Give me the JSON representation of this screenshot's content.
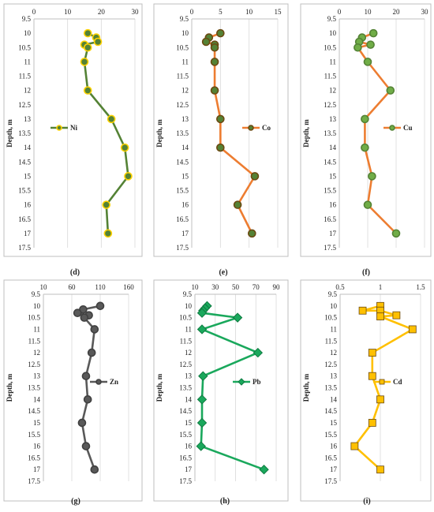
{
  "chart_data": [
    {
      "panel": "(d)",
      "type": "line",
      "ylabel": "Depth, m",
      "xlim": [
        0,
        30
      ],
      "xticks": [
        0,
        10,
        20,
        30
      ],
      "ylim": [
        9.5,
        17.5
      ],
      "yticks": [
        "9.5",
        "10",
        "10.5",
        "11",
        "11.5",
        "12",
        "12.5",
        "13",
        "13.5",
        "14",
        "14.5",
        "15",
        "15.5",
        "16",
        "16.5",
        "17",
        "17.5"
      ],
      "series": [
        {
          "name": "Ni",
          "marker": "circle",
          "color": "#548235",
          "marker_fill": "#548235",
          "marker_edge": "#ffd200",
          "x": [
            16,
            18.5,
            19,
            15,
            16,
            15,
            16,
            23,
            27,
            28,
            21.5,
            22
          ],
          "y": [
            10,
            10.15,
            10.3,
            10.4,
            10.5,
            11,
            12,
            13,
            14,
            15,
            16,
            17
          ]
        }
      ]
    },
    {
      "panel": "(e)",
      "type": "line",
      "ylabel": "Depth, m",
      "xlim": [
        0,
        15
      ],
      "xticks": [
        0,
        5,
        10,
        15
      ],
      "ylim": [
        9.5,
        17.5
      ],
      "yticks": [
        "9.5",
        "10",
        "10.5",
        "11",
        "11.5",
        "12",
        "12.5",
        "13",
        "13.5",
        "14",
        "14.5",
        "15",
        "15.5",
        "16",
        "16.5",
        "17",
        "17.5"
      ],
      "series": [
        {
          "name": "Co",
          "marker": "circle",
          "color": "#ed7d31",
          "marker_fill": "#548235",
          "marker_edge": "#6b4a12",
          "x": [
            5,
            3,
            2.5,
            4,
            4,
            4,
            4,
            5,
            5,
            11,
            8,
            10.5
          ],
          "y": [
            10,
            10.15,
            10.3,
            10.4,
            10.5,
            11,
            12,
            13,
            14,
            15,
            16,
            17
          ]
        }
      ]
    },
    {
      "panel": "(f)",
      "type": "line",
      "ylabel": "Depth, m",
      "xlim": [
        0,
        30
      ],
      "xticks": [
        0,
        10,
        20,
        30
      ],
      "ylim": [
        9.5,
        17.5
      ],
      "yticks": [
        "9.5",
        "10",
        "10.5",
        "11",
        "11.5",
        "12",
        "12.5",
        "13",
        "13.5",
        "14",
        "14.5",
        "15",
        "15.5",
        "16",
        "16.5",
        "17",
        "17.5"
      ],
      "series": [
        {
          "name": "Cu",
          "marker": "circle",
          "color": "#ed7d31",
          "marker_fill": "#70ad47",
          "marker_edge": "#548235",
          "x": [
            12,
            8,
            7,
            11,
            6.5,
            10,
            18,
            9,
            9,
            11.5,
            10,
            20
          ],
          "y": [
            10,
            10.15,
            10.3,
            10.4,
            10.5,
            11,
            12,
            13,
            14,
            15,
            16,
            17
          ]
        }
      ]
    },
    {
      "panel": "(g)",
      "type": "line",
      "ylabel": "Depth, m",
      "xlim": [
        10,
        160
      ],
      "xticks": [
        10,
        60,
        110,
        160
      ],
      "ylim": [
        9.5,
        17.5
      ],
      "yticks": [
        "9.5",
        "10",
        "10.5",
        "11",
        "11.5",
        "12",
        "12.5",
        "13",
        "13.5",
        "14",
        "14.5",
        "15",
        "15.5",
        "16",
        "16.5",
        "17",
        "17.5"
      ],
      "series": [
        {
          "name": "Zn",
          "marker": "circle",
          "color": "#595959",
          "marker_fill": "#595959",
          "marker_edge": "#404040",
          "x": [
            110,
            80,
            70,
            90,
            82,
            100,
            95,
            85,
            88,
            78,
            85,
            100
          ],
          "y": [
            10,
            10.15,
            10.3,
            10.4,
            10.5,
            11,
            12,
            13,
            14,
            15,
            16,
            17
          ]
        }
      ]
    },
    {
      "panel": "(h)",
      "type": "line",
      "ylabel": "Depth, m",
      "xlim": [
        10,
        90
      ],
      "xticks": [
        10,
        30,
        50,
        70,
        90
      ],
      "ylim": [
        9.5,
        17.5
      ],
      "yticks": [
        "9.5",
        "10",
        "10.5",
        "11",
        "11.5",
        "12",
        "12.5",
        "13",
        "13.5",
        "14",
        "14.5",
        "15",
        "15.5",
        "16",
        "16.5",
        "17",
        "17.5"
      ],
      "series": [
        {
          "name": "Pb",
          "marker": "diamond",
          "color": "#1aa85c",
          "marker_fill": "#1aa85c",
          "marker_edge": "#0e7a40",
          "x": [
            22,
            20,
            18,
            17,
            52,
            17,
            72,
            18,
            17,
            17,
            16,
            78
          ],
          "y": [
            10,
            10.1,
            10.2,
            10.3,
            10.5,
            11,
            12,
            13,
            14,
            15,
            16,
            17
          ]
        }
      ]
    },
    {
      "panel": "(i)",
      "type": "line",
      "ylabel": "Depth, m",
      "xlim": [
        0.5,
        1.5
      ],
      "xticks": [
        "0.5",
        "1",
        "1.5"
      ],
      "ylim": [
        9.5,
        17.5
      ],
      "yticks": [
        "9.5",
        "10",
        "10.5",
        "11",
        "11.5",
        "12",
        "12.5",
        "13",
        "13.5",
        "14",
        "14.5",
        "15",
        "15.5",
        "16",
        "16.5",
        "17",
        "17.5"
      ],
      "series": [
        {
          "name": "Cd",
          "marker": "square",
          "color": "#ffc000",
          "marker_fill": "#ffc000",
          "marker_edge": "#6b4a12",
          "x": [
            1.0,
            0.78,
            1.0,
            1.2,
            1.0,
            1.4,
            0.9,
            0.9,
            1.0,
            0.9,
            0.68,
            1.0
          ],
          "y": [
            10,
            10.2,
            10.2,
            10.4,
            10.45,
            11,
            12,
            13,
            14,
            15,
            16,
            17
          ]
        }
      ]
    }
  ]
}
